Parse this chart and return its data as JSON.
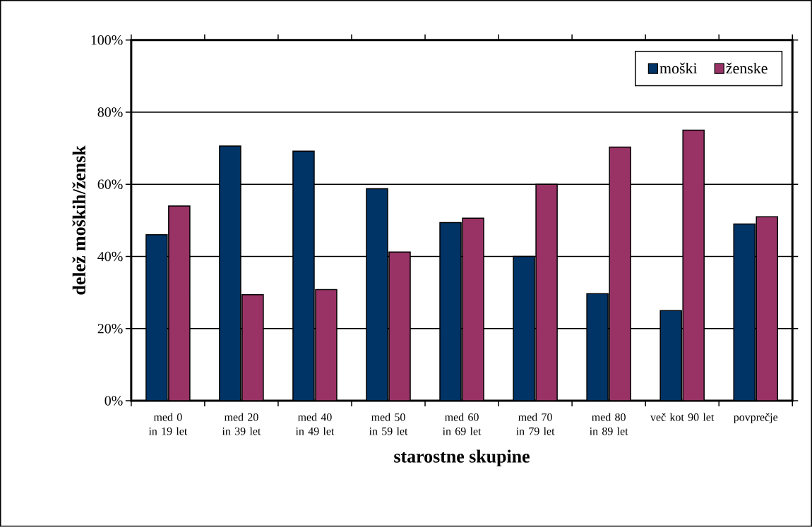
{
  "chart_data": {
    "type": "bar",
    "xlabel": "starostne skupine",
    "ylabel": "delež moških/žensk",
    "categories": [
      "med 0 in 19 let",
      "med 20 in 39 let",
      "med 40 in 49 let",
      "med 50 in 59 let",
      "med 60 in 69 let",
      "med 70 in 79 let",
      "med 80 in 89 let",
      "več kot 90 let",
      "povprečje"
    ],
    "series": [
      {
        "name": "moški",
        "color": "#003366",
        "values": [
          46,
          70.6,
          69.2,
          58.8,
          49.4,
          40,
          29.7,
          25,
          49
        ]
      },
      {
        "name": "ženske",
        "color": "#993366",
        "values": [
          54,
          29.4,
          30.8,
          41.2,
          50.6,
          60,
          70.3,
          75,
          51
        ]
      }
    ],
    "ylim": [
      0,
      100
    ],
    "yticks": [
      {
        "value": 0,
        "label": "0%"
      },
      {
        "value": 20,
        "label": "20%"
      },
      {
        "value": 40,
        "label": "40%"
      },
      {
        "value": 60,
        "label": "60%"
      },
      {
        "value": 80,
        "label": "80%"
      },
      {
        "value": 100,
        "label": "100%"
      }
    ],
    "grid": "y",
    "legend": "top right"
  }
}
